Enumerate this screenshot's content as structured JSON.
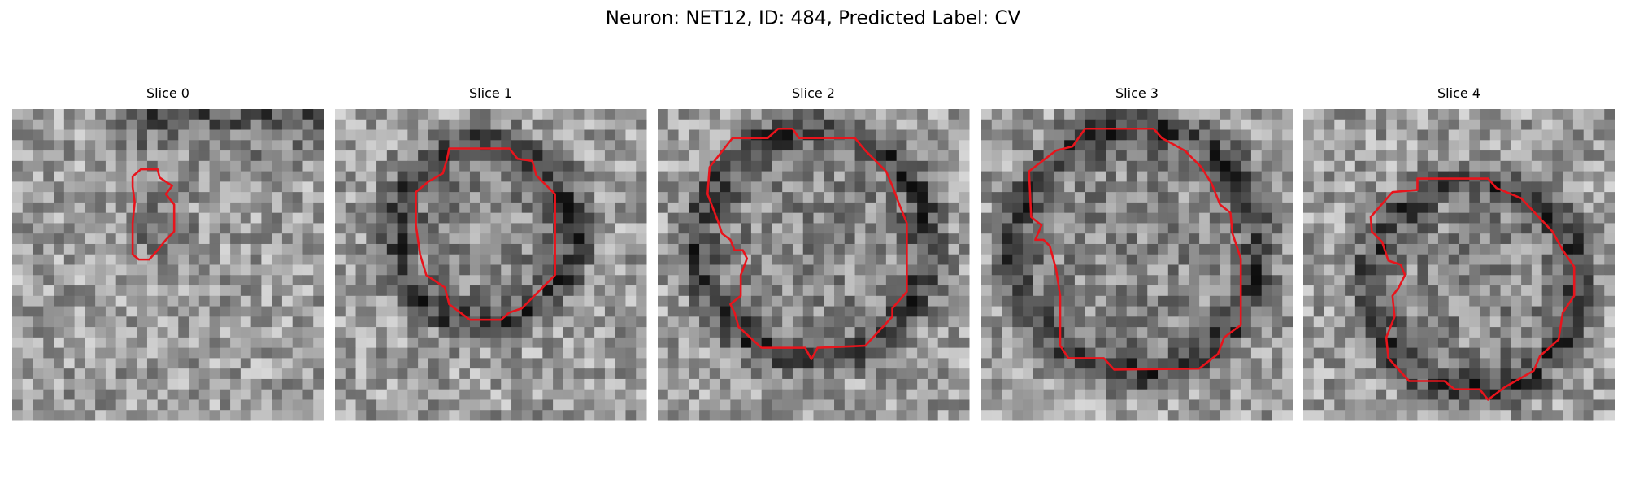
{
  "title": "Neuron: NET12, ID: 484, Predicted Label: CV",
  "panels": [
    {
      "label": "Slice 0"
    },
    {
      "label": "Slice 1"
    },
    {
      "label": "Slice 2"
    },
    {
      "label": "Slice 3"
    },
    {
      "label": "Slice 4"
    }
  ]
}
